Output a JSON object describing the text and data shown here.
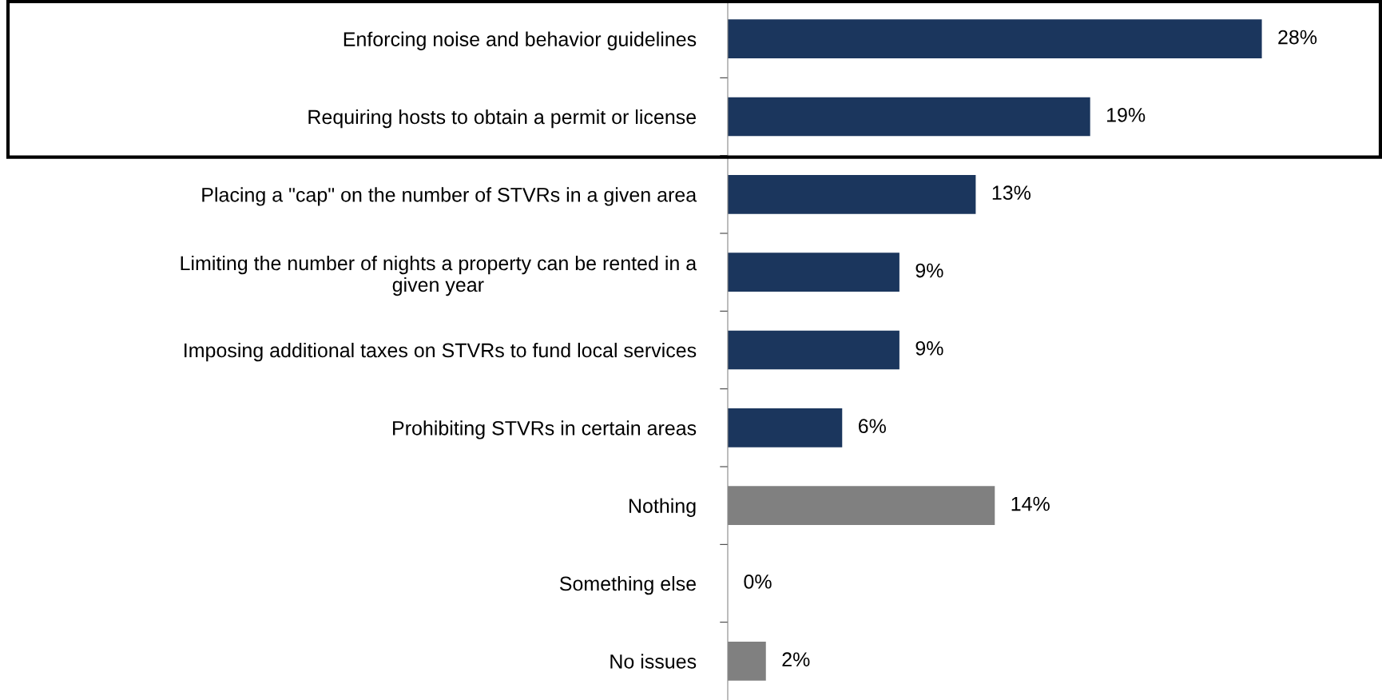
{
  "chart_data": {
    "type": "bar",
    "orientation": "horizontal",
    "categories": [
      "Enforcing noise and behavior guidelines",
      "Requiring hosts to obtain a permit or license",
      "Placing a \"cap\" on the number of STVRs in a given area",
      "Limiting the number of nights a property can be rented in a\ngiven year",
      "Imposing additional taxes on STVRs to fund local services",
      "Prohibiting STVRs in certain areas",
      "Nothing",
      "Something else",
      "No issues"
    ],
    "values": [
      28,
      19,
      13,
      9,
      9,
      6,
      14,
      0,
      2
    ],
    "colors": [
      "#1b365d",
      "#1b365d",
      "#1b365d",
      "#1b365d",
      "#1b365d",
      "#1b365d",
      "#808080",
      "#808080",
      "#808080"
    ],
    "value_labels": [
      "28%",
      "19%",
      "13%",
      "9%",
      "9%",
      "6%",
      "14%",
      "0%",
      "2%"
    ],
    "grid": false,
    "legend": false
  }
}
